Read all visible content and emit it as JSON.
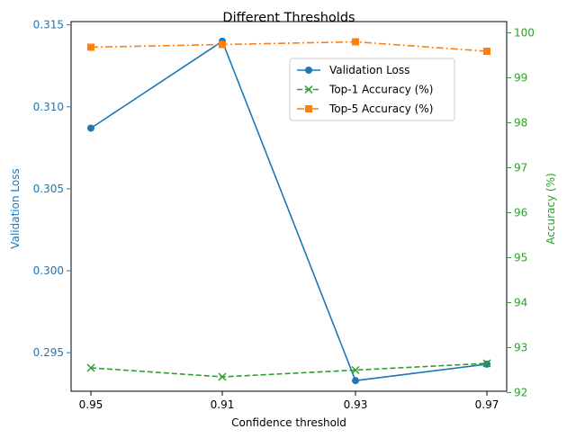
{
  "chart_data": {
    "type": "line",
    "title": "Different Thresholds",
    "xlabel": "Confidence threshold",
    "ylabel_left": "Validation Loss",
    "ylabel_right": "Accuracy (%)",
    "categories": [
      "0.95",
      "0.91",
      "0.93",
      "0.97"
    ],
    "ylim_left": [
      0.29265,
      0.3152
    ],
    "ylim_right": [
      92.03,
      100.25
    ],
    "yticks_left": [
      "0.295",
      "0.300",
      "0.305",
      "0.310",
      "0.315"
    ],
    "yticks_right": [
      "92",
      "93",
      "94",
      "95",
      "96",
      "97",
      "98",
      "99",
      "100"
    ],
    "grid": false,
    "legend_position": "top-right",
    "series": [
      {
        "name": "Validation Loss",
        "axis": "left",
        "values": [
          0.3087,
          0.314,
          0.2933,
          0.2943
        ],
        "color": "#1f77b4",
        "dash": "solid",
        "marker": "circle"
      },
      {
        "name": "Top-1 Accuracy (%)",
        "axis": "right",
        "values": [
          92.55,
          92.35,
          92.5,
          92.65
        ],
        "color": "#2ca02c",
        "dash": "dashed",
        "marker": "x"
      },
      {
        "name": "Top-5 Accuracy (%)",
        "axis": "right",
        "values": [
          99.68,
          99.74,
          99.8,
          99.59
        ],
        "color": "#ff7f0e",
        "dash": "dashdot",
        "marker": "square"
      }
    ],
    "colors": {
      "left_axis": "#1f77b4",
      "right_axis": "#2ca02c",
      "frame": "#000000"
    }
  }
}
